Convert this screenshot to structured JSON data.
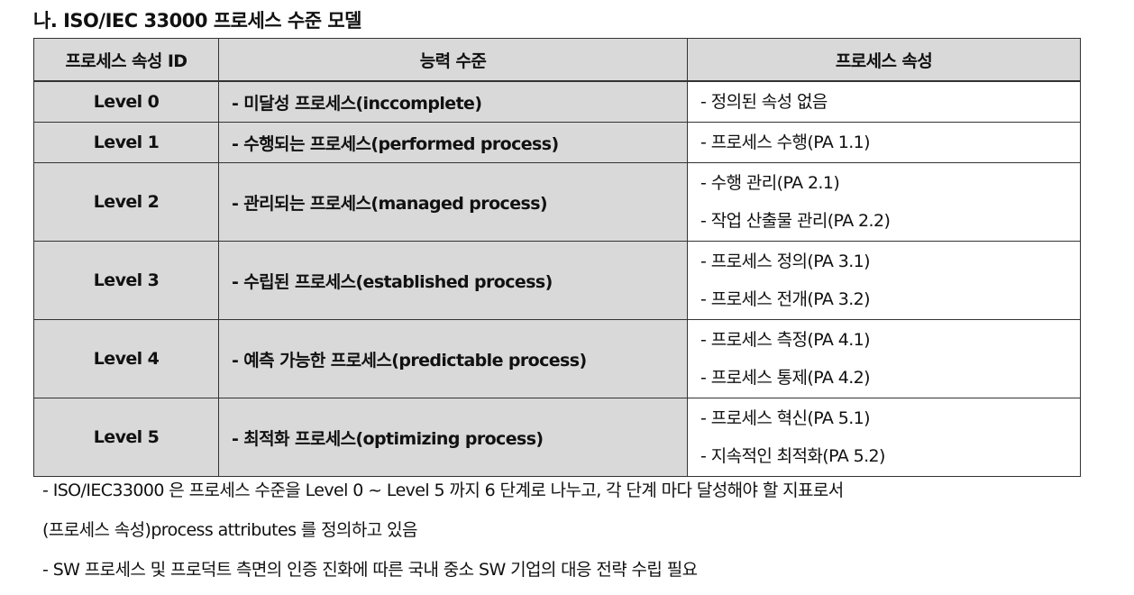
{
  "title": "나. ISO/IEC 33000 프로세스 수준 모델",
  "table": {
    "headers": [
      "프로세스 속성 ID",
      "능력 수준",
      "프로세스 속성"
    ],
    "rows": [
      {
        "level": "Level 0",
        "capability": "- 미달성 프로세스(inccomplete)",
        "attributes": [
          "- 정의된 속성 없음"
        ]
      },
      {
        "level": "Level 1",
        "capability": "- 수행되는 프로세스(performed process)",
        "attributes": [
          "- 프로세스 수행(PA 1.1)"
        ]
      },
      {
        "level": "Level 2",
        "capability": "- 관리되는 프로세스(managed process)",
        "attributes": [
          "- 수행 관리(PA 2.1)",
          "- 작업 산출물 관리(PA 2.2)"
        ]
      },
      {
        "level": "Level 3",
        "capability": "- 수립된 프로세스(established process)",
        "attributes": [
          "- 프로세스 정의(PA 3.1)",
          "- 프로세스 전개(PA 3.2)"
        ]
      },
      {
        "level": "Level 4",
        "capability": "- 예측 가능한 프로세스(predictable process)",
        "attributes": [
          "- 프로세스 측정(PA 4.1)",
          "- 프로세스 통제(PA 4.2)"
        ]
      },
      {
        "level": "Level 5",
        "capability": "- 최적화 프로세스(optimizing process)",
        "attributes": [
          "- 프로세스 혁신(PA 5.1)",
          "- 지속적인 최적화(PA 5.2)"
        ]
      }
    ]
  },
  "notes": [
    "- ISO/IEC33000 은 프로세스 수준을 Level 0 ~ Level 5 까지 6 단계로 나누고, 각 단계 마다 달성해야 할 지표로서",
    "(프로세스 속성)process attributes 를 정의하고 있음",
    "- SW 프로세스 및 프로덕트 측면의 인증 진화에 따른 국내 중소 SW 기업의 대응 전략 수립 필요"
  ],
  "colors": {
    "header_bg": "#d9d9d9",
    "highlight": "#fff200"
  }
}
